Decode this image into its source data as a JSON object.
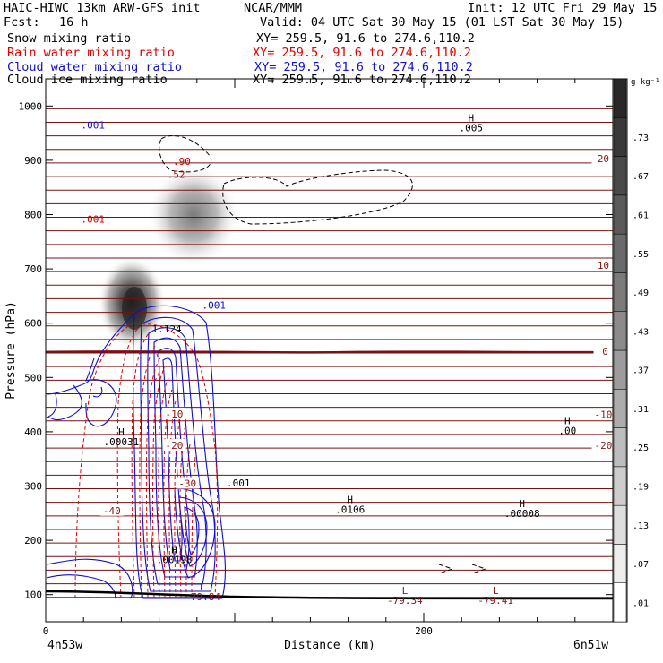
{
  "header": {
    "title": "HAIC-HIWC 13km ARW-GFS init",
    "org": "NCAR/MMM",
    "init": "Init: 12 UTC Fri 29 May 15",
    "fcst_label": "Fcst:",
    "fcst_value": "16 h",
    "valid": "Valid: 04 UTC Sat 30 May 15 (01 LST Sat 30 May 15)"
  },
  "fields": [
    {
      "name": "Snow mixing ratio",
      "xy": "XY= 259.5, 91.6 to 274.6,110.2",
      "color": "#000000"
    },
    {
      "name": "Rain water mixing ratio",
      "xy": "XY= 259.5, 91.6 to 274.6,110.2",
      "color": "#e00000"
    },
    {
      "name": "Cloud water mixing ratio",
      "xy": "XY= 259.5, 91.6 to 274.6,110.2",
      "color": "#1010d0"
    },
    {
      "name": "Cloud ice mixing ratio",
      "xy": "XY= 259.5, 91.6 to 274.6,110.2",
      "color": "#000000"
    }
  ],
  "colorbar": {
    "unit": "g kg⁻¹",
    "ticks": [
      ".01",
      ".07",
      ".13",
      ".19",
      ".25",
      ".31",
      ".37",
      ".43",
      ".49",
      ".55",
      ".61",
      ".67",
      ".73"
    ]
  },
  "chart_data": {
    "type": "contour",
    "ylabel": "Pressure (hPa)",
    "xlabel": "Distance (km)",
    "x_ticks": [
      "0",
      "200"
    ],
    "xlim": [
      0,
      300
    ],
    "y_ticks": [
      "100",
      "200",
      "300",
      "400",
      "500",
      "600",
      "700",
      "800",
      "900",
      "1000"
    ],
    "ylim": [
      1050,
      50
    ],
    "left_endpoint": "4n53w",
    "right_endpoint": "6n51w",
    "temperature_labels": [
      {
        "text": "-40",
        "x": 35,
        "p": 255
      },
      {
        "text": "-30",
        "x": 75,
        "p": 305
      },
      {
        "text": "-20",
        "x": 68,
        "p": 375
      },
      {
        "text": "-20",
        "x": 295,
        "p": 375
      },
      {
        "text": "-10",
        "x": 68,
        "p": 433
      },
      {
        "text": "-10",
        "x": 295,
        "p": 432
      },
      {
        "text": "0",
        "x": 296,
        "p": 548
      },
      {
        "text": "10",
        "x": 295,
        "p": 707
      },
      {
        "text": "20",
        "x": 295,
        "p": 903
      }
    ],
    "hl_markers": [
      {
        "sym": "L",
        "val": "-79.84",
        "x": 83,
        "p": 108
      },
      {
        "sym": "L",
        "val": "-79.34",
        "x": 190,
        "p": 101
      },
      {
        "sym": "L",
        "val": "-79.41",
        "x": 238,
        "p": 101
      },
      {
        "sym": "H",
        "val": ".00198",
        "x": 68,
        "p": 176
      },
      {
        "sym": "H",
        "val": ".0106",
        "x": 161,
        "p": 269
      },
      {
        "sym": "H",
        "val": ".00008",
        "x": 252,
        "p": 261
      },
      {
        "sym": "H",
        "val": ".00031",
        "x": 40,
        "p": 393
      },
      {
        "sym": "H",
        "val": ".00",
        "x": 276,
        "p": 414
      },
      {
        "sym": "H",
        "val": ".005",
        "x": 225,
        "p": 972
      }
    ],
    "contour_labels": [
      {
        "text": ".001",
        "x": 102,
        "p": 306,
        "color": "black"
      },
      {
        "text": ".001",
        "x": 89,
        "p": 633,
        "color": "blue"
      },
      {
        "text": ".001",
        "x": 25,
        "p": 792,
        "color": "red"
      },
      {
        "text": ".001",
        "x": 25,
        "p": 965,
        "color": "blue"
      },
      {
        "text": "1.124",
        "x": 64,
        "p": 590,
        "color": "black"
      },
      {
        "text": ".52",
        "x": 69,
        "p": 874,
        "color": "red"
      },
      {
        "text": ".90",
        "x": 72,
        "p": 898,
        "color": "red"
      }
    ]
  }
}
